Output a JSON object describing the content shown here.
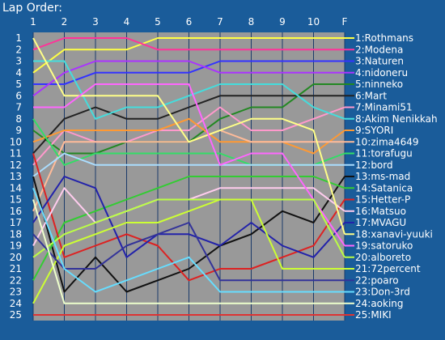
{
  "chart_data": {
    "type": "line",
    "title": "Lap Order:",
    "x": [
      "1",
      "2",
      "3",
      "4",
      "5",
      "6",
      "7",
      "8",
      "9",
      "10",
      "F"
    ],
    "y_ticks": [
      "1",
      "2",
      "3",
      "4",
      "5",
      "6",
      "7",
      "8",
      "9",
      "10",
      "11",
      "12",
      "13",
      "14",
      "15",
      "16",
      "17",
      "18",
      "19",
      "20",
      "21",
      "22",
      "23",
      "24",
      "25"
    ],
    "ylim": [
      1,
      25
    ],
    "y_inverted": true,
    "grid": true,
    "plot_background": "#999999",
    "background": "#1a5c9a",
    "series": [
      {
        "name": "1:Rothmans",
        "color": "#ffff44",
        "values": [
          4,
          2,
          2,
          2,
          1,
          1,
          1,
          1,
          1,
          1,
          1
        ]
      },
      {
        "name": "2:Modena",
        "color": "#ff3399",
        "values": [
          2,
          1,
          1,
          1,
          2,
          2,
          2,
          2,
          2,
          2,
          2
        ]
      },
      {
        "name": "3:Naturen",
        "color": "#3333ff",
        "values": [
          5,
          5,
          4,
          4,
          4,
          4,
          3,
          3,
          3,
          3,
          3
        ]
      },
      {
        "name": "4:nidoneru",
        "color": "#aa33ff",
        "values": [
          6,
          4,
          3,
          3,
          3,
          3,
          4,
          4,
          4,
          4,
          4
        ]
      },
      {
        "name": "5:ninneko",
        "color": "#228822",
        "values": [
          9,
          11,
          11,
          10,
          10,
          10,
          8,
          7,
          7,
          5,
          5
        ]
      },
      {
        "name": "6:Mart",
        "color": "#222222",
        "values": [
          11,
          8,
          7,
          8,
          8,
          7,
          6,
          6,
          6,
          6,
          6
        ]
      },
      {
        "name": "7:Minami51",
        "color": "#ff99cc",
        "values": [
          12,
          9,
          10,
          10,
          9,
          9,
          7,
          9,
          9,
          8,
          7
        ]
      },
      {
        "name": "8:Akim Nenikkah",
        "color": "#44dddd",
        "values": [
          3,
          3,
          8,
          7,
          7,
          6,
          5,
          5,
          5,
          7,
          8
        ]
      },
      {
        "name": "9:SYORI",
        "color": "#ff9933",
        "values": [
          10,
          9,
          9,
          9,
          9,
          8,
          10,
          10,
          10,
          11,
          9
        ]
      },
      {
        "name": "10:zima4649",
        "color": "#ffbb99",
        "values": [
          16,
          10,
          10,
          10,
          10,
          10,
          9,
          10,
          10,
          10,
          10
        ]
      },
      {
        "name": "11:torafugu",
        "color": "#33dd66",
        "values": [
          8,
          12,
          11,
          11,
          11,
          11,
          11,
          12,
          12,
          12,
          11
        ]
      },
      {
        "name": "12:bord",
        "color": "#aaddff",
        "values": [
          13,
          11,
          12,
          12,
          12,
          12,
          12,
          12,
          12,
          12,
          12
        ]
      },
      {
        "name": "13:ms-mad",
        "color": "#111111",
        "values": [
          13,
          23,
          20,
          23,
          22,
          21,
          19,
          18,
          16,
          17,
          13
        ]
      },
      {
        "name": "14:Satanica",
        "color": "#33cc33",
        "values": [
          22,
          17,
          16,
          15,
          14,
          13,
          13,
          13,
          13,
          13,
          14
        ]
      },
      {
        "name": "15:Hetter-P",
        "color": "#dd2222",
        "values": [
          11,
          20,
          19,
          18,
          19,
          22,
          21,
          21,
          20,
          19,
          15
        ]
      },
      {
        "name": "16:Matsuo",
        "color": "#ffccee",
        "values": [
          19,
          14,
          17,
          16,
          15,
          15,
          14,
          14,
          14,
          14,
          16
        ]
      },
      {
        "name": "17:MVAGU",
        "color": "#2222aa",
        "values": [
          17,
          13,
          14,
          20,
          18,
          18,
          19,
          17,
          19,
          20,
          17
        ]
      },
      {
        "name": "18:xanavi-yuuki",
        "color": "#ffff88",
        "values": [
          1,
          6,
          6,
          6,
          6,
          10,
          9,
          8,
          8,
          9,
          18
        ]
      },
      {
        "name": "19:satoruko",
        "color": "#ff66ff",
        "values": [
          7,
          7,
          5,
          5,
          5,
          5,
          12,
          11,
          11,
          15,
          19
        ]
      },
      {
        "name": "20:alboreto",
        "color": "#bbff44",
        "values": [
          20,
          18,
          17,
          16,
          15,
          15,
          15,
          15,
          15,
          15,
          20
        ]
      },
      {
        "name": "21:72percent",
        "color": "#ccff33",
        "values": [
          24,
          19,
          18,
          17,
          17,
          16,
          15,
          15,
          21,
          21,
          21
        ]
      },
      {
        "name": "22:poaro",
        "color": "#333399",
        "values": [
          18,
          21,
          21,
          19,
          18,
          17,
          22,
          22,
          22,
          22,
          22
        ]
      },
      {
        "name": "23:Don-3rd",
        "color": "#66ddff",
        "values": [
          14,
          21,
          23,
          22,
          21,
          20,
          23,
          23,
          23,
          23,
          23
        ]
      },
      {
        "name": "24:aoking",
        "color": "#eeffcc",
        "values": [
          15,
          24,
          24,
          24,
          24,
          24,
          24,
          24,
          24,
          24,
          24
        ]
      },
      {
        "name": "25:MIKI",
        "color": "#dd3333",
        "values": [
          25,
          25,
          25,
          25,
          25,
          25,
          25,
          25,
          25,
          25,
          25
        ]
      }
    ]
  }
}
